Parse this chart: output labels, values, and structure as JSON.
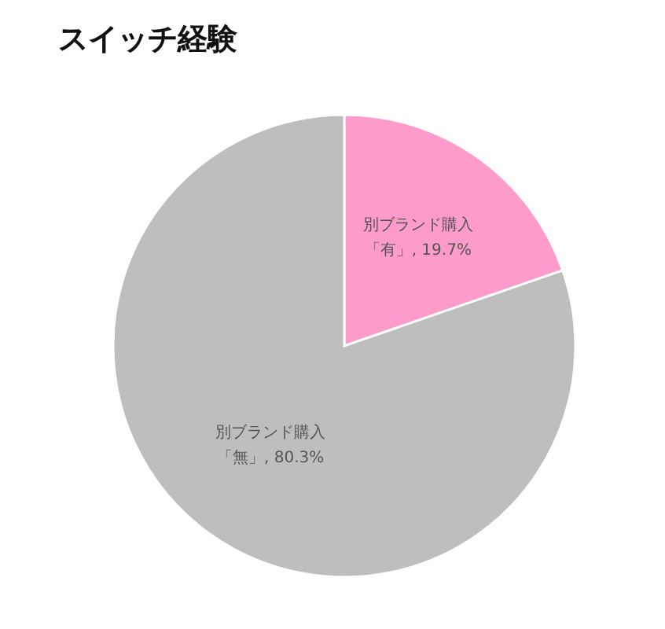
{
  "chart_data": {
    "type": "pie",
    "title": "スイッチ経験",
    "categories": [
      "別ブランド購入「有」",
      "別ブランド購入「無」"
    ],
    "values": [
      19.7,
      80.3
    ],
    "colors": [
      "#fd9bcb",
      "#bebebe"
    ],
    "value_labels": [
      "19.7%",
      "80.3%"
    ]
  }
}
